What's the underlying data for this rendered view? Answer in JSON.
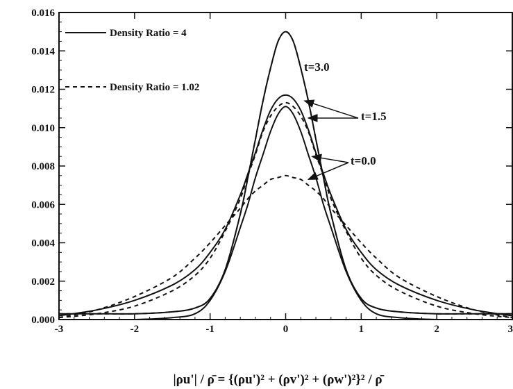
{
  "chart_data": {
    "type": "line",
    "title": "",
    "xlabel": "|ρu'| / ρ̄ = {(ρu')² + (ρv')² + (ρw')²}² / ρ̄",
    "ylabel": "",
    "xlim": [
      -3,
      3
    ],
    "ylim": [
      0,
      0.016
    ],
    "x_ticks": [
      "-3",
      "-2",
      "-1",
      "0",
      "1",
      "2",
      "3"
    ],
    "y_ticks": [
      "0.000",
      "0.002",
      "0.004",
      "0.006",
      "0.008",
      "0.010",
      "0.012",
      "0.014",
      "0.016"
    ],
    "grid": false,
    "legend": {
      "position": "top-left",
      "entries": [
        {
          "label": "Density Ratio = 4",
          "style": "solid"
        },
        {
          "label": "Density Ratio = 1.02",
          "style": "dashed"
        }
      ]
    },
    "annotations": [
      {
        "text": "t=3.0",
        "targets": []
      },
      {
        "text": "t=1.5",
        "targets": [
          [
            0.25,
            0.0114
          ],
          [
            0.3,
            0.0105
          ]
        ]
      },
      {
        "text": "t=0.0",
        "targets": [
          [
            0.35,
            0.0085
          ],
          [
            0.3,
            0.0073
          ]
        ]
      }
    ],
    "x": [
      -3,
      -2.5,
      -2,
      -1.5,
      -1.2,
      -1,
      -0.8,
      -0.6,
      -0.5,
      -0.4,
      -0.3,
      -0.2,
      -0.1,
      0,
      0.1,
      0.2,
      0.3,
      0.4,
      0.5,
      0.6,
      0.8,
      1,
      1.2,
      1.5,
      2,
      2.5,
      3
    ],
    "series": [
      {
        "name": "Density Ratio = 4",
        "label": "t=3.0",
        "style": "solid",
        "values": [
          0.0003,
          0.0003,
          0.0003,
          0.0004,
          0.0006,
          0.0011,
          0.0026,
          0.0055,
          0.0074,
          0.0094,
          0.0114,
          0.0131,
          0.0145,
          0.015,
          0.0145,
          0.0131,
          0.0114,
          0.0094,
          0.0074,
          0.0055,
          0.0026,
          0.0011,
          0.0006,
          0.0004,
          0.0003,
          0.0003,
          0.0003
        ]
      },
      {
        "name": "Density Ratio = 1.02",
        "label": "t=3.0",
        "style": "dashed",
        "values": [
          0.0003,
          0.0003,
          0.0003,
          0.0004,
          0.0006,
          0.0011,
          0.0026,
          0.0055,
          0.0074,
          0.0094,
          0.0114,
          0.0131,
          0.0145,
          0.015,
          0.0145,
          0.0131,
          0.0114,
          0.0094,
          0.0074,
          0.0055,
          0.0026,
          0.0011,
          0.0006,
          0.0004,
          0.0003,
          0.0003,
          0.0003
        ]
      },
      {
        "name": "Density Ratio = 4",
        "label": "t=1.5",
        "style": "solid",
        "values": [
          0.0002,
          0.0005,
          0.001,
          0.0018,
          0.0026,
          0.0035,
          0.0047,
          0.0065,
          0.0076,
          0.0087,
          0.0099,
          0.0109,
          0.0115,
          0.0117,
          0.0115,
          0.0109,
          0.0099,
          0.0087,
          0.0076,
          0.0065,
          0.0047,
          0.0035,
          0.0026,
          0.0018,
          0.001,
          0.0005,
          0.0002
        ]
      },
      {
        "name": "Density Ratio = 1.02",
        "label": "t=1.5",
        "style": "dashed",
        "values": [
          0.0001,
          0.0003,
          0.0007,
          0.0015,
          0.0023,
          0.0032,
          0.0046,
          0.0063,
          0.0075,
          0.0086,
          0.0098,
          0.0106,
          0.0111,
          0.0113,
          0.0111,
          0.0106,
          0.0098,
          0.0086,
          0.0075,
          0.0063,
          0.0046,
          0.0032,
          0.0023,
          0.0015,
          0.0007,
          0.0003,
          0.0001
        ]
      },
      {
        "name": "Density Ratio = 4",
        "label": "t=0.0",
        "style": "solid",
        "values": [
          0.0,
          0.0,
          0.0,
          0.0001,
          0.0003,
          0.001,
          0.0025,
          0.0048,
          0.006,
          0.0074,
          0.0086,
          0.0098,
          0.0107,
          0.0111,
          0.0107,
          0.0098,
          0.0086,
          0.0074,
          0.006,
          0.0048,
          0.0025,
          0.001,
          0.0003,
          0.0001,
          0.0,
          0.0,
          0.0
        ]
      },
      {
        "name": "Density Ratio = 1.02",
        "label": "t=0.0",
        "style": "dashed",
        "values": [
          0.0001,
          0.0005,
          0.0012,
          0.0022,
          0.0032,
          0.004,
          0.0049,
          0.0058,
          0.0063,
          0.0067,
          0.007,
          0.0073,
          0.0074,
          0.0075,
          0.0074,
          0.0073,
          0.007,
          0.0067,
          0.0063,
          0.0058,
          0.0049,
          0.004,
          0.0032,
          0.0022,
          0.0012,
          0.0005,
          0.0001
        ]
      }
    ]
  }
}
